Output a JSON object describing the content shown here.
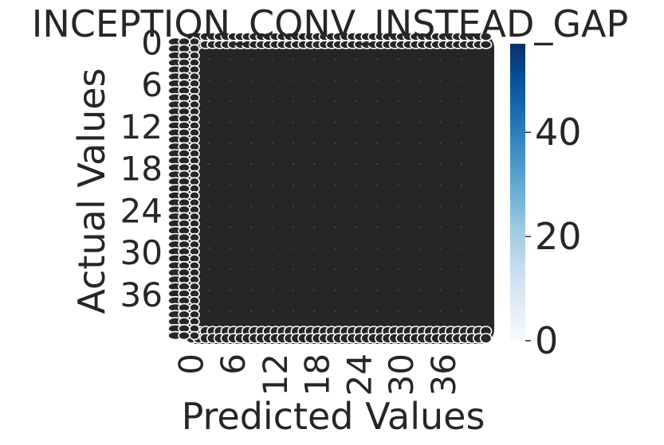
{
  "chart_data": {
    "type": "heatmap",
    "title": "INCEPTION_CONV_INSTEAD_GAP",
    "xlabel": "Predicted Values",
    "ylabel": "Actual Values",
    "rows": 43,
    "cols": 43,
    "x_tick_labels": [
      "0",
      "6",
      "12",
      "18",
      "24",
      "30",
      "36"
    ],
    "y_tick_labels": [
      "0",
      "6",
      "12",
      "18",
      "24",
      "30",
      "36"
    ],
    "colorbar": {
      "colormap": "Blues",
      "range": [
        0,
        57
      ],
      "ticks": [
        "0",
        "20",
        "40"
      ]
    },
    "annotations": "dense per-cell count annotations overlapping (illegible)",
    "colors": {
      "cell": "#262626",
      "annotation_ring": "#ffffff",
      "text": "#262626",
      "cmap_low": "#f7fbff",
      "cmap_mid": "#6baed6",
      "cmap_high": "#08306b"
    }
  }
}
